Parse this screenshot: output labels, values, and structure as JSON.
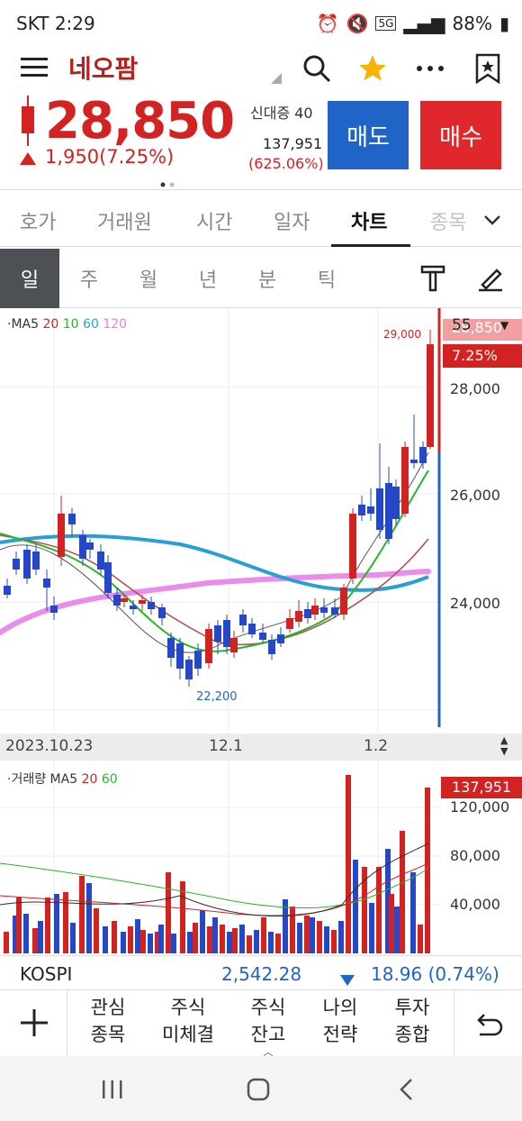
{
  "status": {
    "time": "SKT 2:29",
    "battery": "88%",
    "network": "5G"
  },
  "header": {
    "title": "네오팜"
  },
  "price": {
    "current": "28,850",
    "change": "1,950(7.25%)",
    "credit_label": "신대증 40",
    "volume": "137,951",
    "volume_pct": "(625.06%)",
    "sell_label": "매도",
    "buy_label": "매수"
  },
  "tabs": [
    "호가",
    "거래원",
    "시간",
    "일자",
    "차트",
    "종목"
  ],
  "active_tab": "차트",
  "periods": [
    "일",
    "주",
    "월",
    "년",
    "분",
    "틱"
  ],
  "active_period": "일",
  "chart": {
    "ma_prefix": "·MA5",
    "ma_items": [
      {
        "label": "20",
        "color": "#d32222"
      },
      {
        "label": "10",
        "color": "#2bb32b"
      },
      {
        "label": "60",
        "color": "#2a9fd6"
      },
      {
        "label": "120",
        "color": "#e87fe8"
      }
    ],
    "y_ticks": [
      "28,000",
      "26,000",
      "24,000"
    ],
    "high_label": "29,000",
    "low_label": "22,200",
    "current_tag": "28,850",
    "right_mini": "55",
    "pct_tag": "7.25%"
  },
  "date_axis": [
    "2023.10.23",
    "12.1",
    "1.2"
  ],
  "volume": {
    "prefix": "·거래량 MA5",
    "ma_items": [
      {
        "label": "20",
        "color": "#d32222"
      },
      {
        "label": "60",
        "color": "#2bb32b"
      }
    ],
    "y_ticks": [
      "120,000",
      "80,000",
      "40,000"
    ],
    "current_tag": "137,951"
  },
  "kospi": {
    "name": "KOSPI",
    "value": "2,542.28",
    "change": "18.96 (0.74%)"
  },
  "bottom_nav": [
    {
      "line1": "관심",
      "line2": "종목"
    },
    {
      "line1": "주식",
      "line2": "미체결"
    },
    {
      "line1": "주식",
      "line2": "잔고"
    },
    {
      "line1": "나의",
      "line2": "전략"
    },
    {
      "line1": "투자",
      "line2": "종합"
    }
  ],
  "colors": {
    "up": "#d32222",
    "down": "#2448c8",
    "accent": "#b5211d"
  }
}
